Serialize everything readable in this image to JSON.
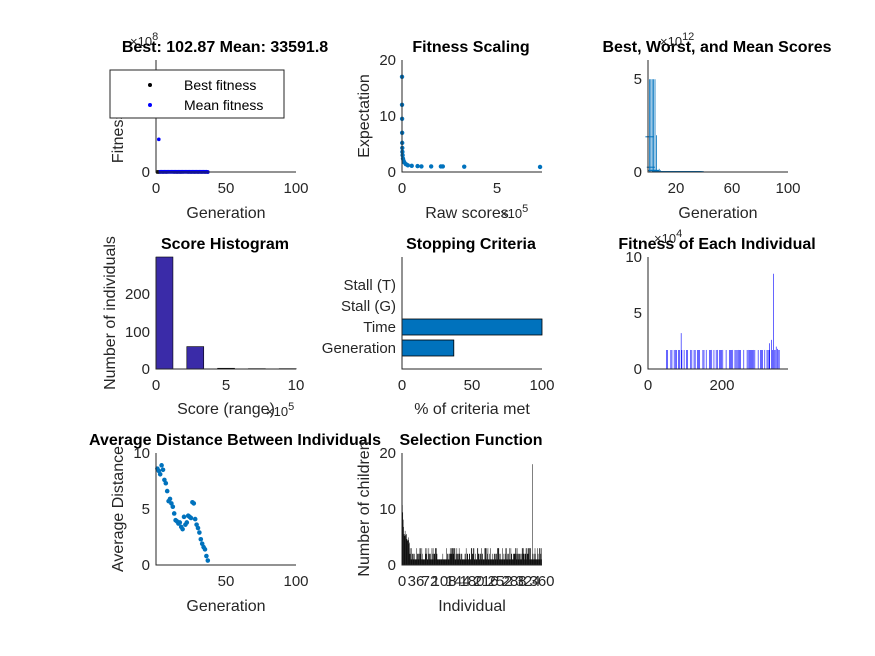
{
  "chart_data": [
    {
      "id": "p1",
      "type": "scatter",
      "title": "Best: 102.87 Mean: 33591.8",
      "xlabel": "Generation",
      "ylabel": "Fitness value",
      "xlim": [
        0,
        100
      ],
      "ylim": [
        0,
        120000000.0
      ],
      "xticks": [
        "0",
        "50",
        "100"
      ],
      "yticks": [
        "0"
      ],
      "y_exponent": "×10^8",
      "legend_position": "top-left",
      "series": [
        {
          "name": "Best fitness",
          "color": "#000000",
          "x": [
            1,
            2,
            3,
            4,
            5,
            6,
            7,
            8,
            9,
            10,
            11,
            12,
            13,
            14,
            15,
            16,
            17,
            18,
            19,
            20,
            21,
            22,
            23,
            24,
            25,
            26,
            27,
            28,
            29,
            30,
            31,
            32,
            33,
            34,
            35,
            36,
            37
          ],
          "y": [
            40000,
            40000,
            30000,
            30000,
            30000,
            20000,
            20000,
            20000,
            10000,
            10000,
            10000,
            10000,
            5000,
            5000,
            5000,
            5000,
            3000,
            3000,
            3000,
            2000,
            2000,
            2000,
            1000,
            1000,
            1000,
            800,
            800,
            600,
            500,
            400,
            300,
            250,
            200,
            150,
            120,
            110,
            102.87
          ]
        },
        {
          "name": "Mean fitness",
          "color": "#0000ff",
          "x": [
            1,
            2,
            3,
            4,
            5,
            6,
            7,
            8,
            9,
            10,
            11,
            12,
            13,
            14,
            15,
            16,
            17,
            18,
            19,
            20,
            21,
            22,
            23,
            24,
            25,
            26,
            27,
            28,
            29,
            30,
            31,
            32,
            33,
            34,
            35,
            36,
            37
          ],
          "y": [
            100000000,
            35000000,
            300000,
            300000,
            300000,
            300000,
            300000,
            300000,
            300000,
            300000,
            300000,
            300000,
            300000,
            300000,
            300000,
            300000,
            300000,
            300000,
            300000,
            300000,
            300000,
            300000,
            300000,
            300000,
            300000,
            300000,
            300000,
            300000,
            300000,
            300000,
            300000,
            300000,
            300000,
            300000,
            300000,
            300000,
            33591.8
          ]
        }
      ]
    },
    {
      "id": "p2",
      "type": "scatter",
      "title": "Fitness Scaling",
      "xlabel": "Raw scores",
      "ylabel": "Expectation",
      "xlim": [
        0,
        720000
      ],
      "ylim": [
        0,
        20
      ],
      "xticks": [
        "0",
        "5"
      ],
      "yticks": [
        "0",
        "10",
        "20"
      ],
      "x_exponent": "×10^5",
      "color": "#0072bd",
      "x": [
        100,
        200,
        500,
        800,
        1000,
        1500,
        2000,
        3000,
        5000,
        8000,
        12000,
        20000,
        30000,
        50000,
        80000,
        100000,
        150000,
        200000,
        210000,
        320000,
        710000
      ],
      "y": [
        17,
        12,
        9.5,
        7,
        5.2,
        4.3,
        3.6,
        3,
        2.4,
        2,
        1.7,
        1.4,
        1.2,
        1.1,
        1.05,
        1,
        1,
        1,
        1,
        0.95,
        0.9
      ]
    },
    {
      "id": "p3",
      "type": "bar",
      "title": "Best, Worst, and Mean Scores",
      "xlabel": "Generation",
      "xlim": [
        0,
        100
      ],
      "ylim": [
        0,
        7
      ],
      "xticks": [
        "20",
        "60",
        "100"
      ],
      "yticks": [
        "0",
        "5"
      ],
      "y_exponent": "×10^12",
      "color": "#0072bd",
      "x": [
        1,
        2,
        3,
        4,
        5,
        6,
        7,
        8,
        9,
        10,
        11,
        12,
        13,
        14,
        15,
        16,
        17,
        18,
        19,
        20,
        21,
        22,
        23,
        24,
        25,
        26,
        27,
        28,
        29,
        30,
        31,
        32,
        33,
        34,
        35,
        36,
        37
      ],
      "worst": [
        5.8,
        5.8,
        5.8,
        5.8,
        5.8,
        2.3,
        0.1,
        0.2,
        0.1,
        0.05,
        0.05,
        0.05,
        0.05,
        0.05,
        0.05,
        0.05,
        0.05,
        0.05,
        0.05,
        0.05,
        0.05,
        0.05,
        0.05,
        0.05,
        0.05,
        0.05,
        0.05,
        0.05,
        0.05,
        0.05,
        0.05,
        0.05,
        0.05,
        0.05,
        0.05,
        0.05,
        0.05
      ],
      "mean": [
        2.2,
        0.3,
        0.1,
        0.1,
        0.1,
        0.05,
        0.02,
        0.02,
        0.02,
        0.02,
        0.02,
        0.02,
        0.02,
        0.02,
        0.02,
        0.02,
        0.02,
        0.02,
        0.02,
        0.02,
        0.02,
        0.02,
        0.02,
        0.02,
        0.02,
        0.02,
        0.02,
        0.02,
        0.02,
        0.02,
        0.02,
        0.02,
        0.02,
        0.02,
        0.02,
        0.02,
        0.02
      ]
    },
    {
      "id": "p4",
      "type": "bar",
      "title": "Score Histogram",
      "xlabel": "Score (range)",
      "ylabel": "Number of individuals",
      "xlim": [
        0,
        1000000
      ],
      "ylim": [
        0,
        300
      ],
      "xticks": [
        "0",
        "5",
        "10"
      ],
      "yticks": [
        "0",
        "100",
        "200"
      ],
      "x_exponent": "×10^5",
      "color": "#3a2ba8",
      "bins": [
        0,
        220000,
        440000,
        660000,
        880000
      ],
      "values": [
        300,
        60,
        2,
        1,
        1
      ]
    },
    {
      "id": "p5",
      "type": "bar",
      "title": "Stopping Criteria",
      "xlabel": "% of criteria met",
      "xlim": [
        0,
        100
      ],
      "xticks": [
        "0",
        "50",
        "100"
      ],
      "color": "#0072bd",
      "categories": [
        "Stall (T)",
        "Stall (G)",
        "Time",
        "Generation"
      ],
      "values": [
        0,
        0,
        100,
        37
      ]
    },
    {
      "id": "p6",
      "type": "bar",
      "title": "Fitness of Each Individual",
      "xlim": [
        0,
        380
      ],
      "ylim": [
        0,
        100000.0
      ],
      "xticks": [
        "0",
        "200"
      ],
      "yticks": [
        "0",
        "5",
        "10"
      ],
      "y_exponent": "×10^4",
      "color": "#0000ff",
      "baseline_value": 17000,
      "peaks": [
        [
          90,
          32000
        ],
        [
          330,
          23000
        ],
        [
          335,
          26000
        ],
        [
          341,
          85000
        ],
        [
          348,
          20000
        ],
        [
          352,
          18000
        ]
      ]
    },
    {
      "id": "p7",
      "type": "scatter",
      "title": "Average Distance Between Individuals",
      "xlabel": "Generation",
      "ylabel": "Average Distance",
      "xlim": [
        0,
        100
      ],
      "ylim": [
        0,
        10
      ],
      "xticks": [
        "50",
        "100"
      ],
      "yticks": [
        "0",
        "5",
        "10"
      ],
      "color": "#0072bd",
      "x": [
        1,
        2,
        3,
        4,
        5,
        6,
        7,
        8,
        9,
        10,
        11,
        12,
        13,
        14,
        15,
        16,
        17,
        18,
        19,
        20,
        21,
        22,
        23,
        24,
        25,
        26,
        27,
        28,
        29,
        30,
        31,
        32,
        33,
        34,
        35,
        36,
        37
      ],
      "y": [
        8.6,
        8.4,
        8.1,
        8.9,
        8.5,
        7.6,
        7.3,
        6.6,
        5.7,
        5.9,
        5.5,
        5.2,
        4.6,
        4.0,
        3.9,
        3.7,
        3.8,
        3.4,
        3.2,
        4.3,
        3.6,
        3.8,
        4.4,
        4.3,
        4.2,
        5.6,
        5.5,
        4.1,
        3.6,
        3.3,
        2.9,
        2.3,
        1.9,
        1.6,
        1.4,
        0.8,
        0.4
      ]
    },
    {
      "id": "p8",
      "type": "bar",
      "title": "Selection Function",
      "xlabel": "Individual",
      "ylabel": "Number of children",
      "xlim": [
        0,
        360
      ],
      "ylim": [
        0,
        20
      ],
      "yticks": [
        "0",
        "10",
        "20"
      ],
      "xticks": [
        "0",
        "36",
        "72",
        "108",
        "144",
        "180",
        "216",
        "252",
        "288",
        "324",
        "360"
      ],
      "color": "#000000",
      "spike": {
        "x": 335,
        "value": 18
      }
    }
  ]
}
